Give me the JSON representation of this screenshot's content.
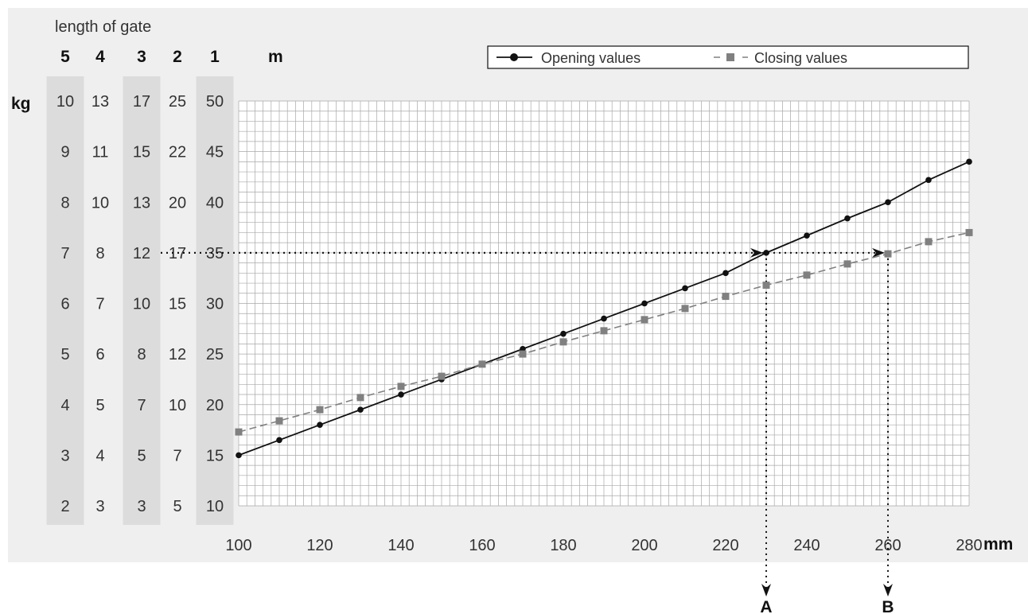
{
  "chart_data": {
    "type": "line",
    "title": "",
    "caption": "length of gate",
    "xlabel": "mm",
    "ylabel": "kg",
    "length_unit": "m",
    "x": [
      100,
      110,
      120,
      130,
      140,
      150,
      160,
      170,
      180,
      190,
      200,
      210,
      220,
      230,
      240,
      250,
      260,
      270,
      280
    ],
    "xlim": [
      100,
      280
    ],
    "x_ticks": [
      100,
      120,
      140,
      160,
      180,
      200,
      220,
      240,
      260,
      280
    ],
    "ylim": [
      10,
      50
    ],
    "series": [
      {
        "name": "Opening values",
        "color": "#111111",
        "marker": "circle",
        "dash": "solid",
        "values": [
          15,
          16.5,
          18,
          19.5,
          21,
          22.5,
          24,
          25.5,
          27,
          28.5,
          30,
          31.5,
          33,
          35,
          36.7,
          38.4,
          40,
          42.2,
          44
        ]
      },
      {
        "name": "Closing values",
        "color": "#808080",
        "marker": "square",
        "dash": "dashed",
        "values": [
          17.3,
          18.4,
          19.5,
          20.7,
          21.8,
          22.8,
          24,
          25,
          26.2,
          27.3,
          28.4,
          29.5,
          30.7,
          31.8,
          32.8,
          33.9,
          34.9,
          36.1,
          37
        ]
      }
    ],
    "length_columns": [
      {
        "header": "5",
        "shaded": true,
        "labels": [
          "10",
          "9",
          "8",
          "7",
          "6",
          "5",
          "4",
          "3",
          "2"
        ]
      },
      {
        "header": "4",
        "shaded": false,
        "labels": [
          "13",
          "11",
          "10",
          "8",
          "7",
          "6",
          "5",
          "4",
          "3"
        ]
      },
      {
        "header": "3",
        "shaded": true,
        "labels": [
          "17",
          "15",
          "13",
          "12",
          "10",
          "8",
          "7",
          "5",
          "3"
        ]
      },
      {
        "header": "2",
        "shaded": false,
        "labels": [
          "25",
          "22",
          "20",
          "17",
          "15",
          "12",
          "10",
          "7",
          "5"
        ]
      },
      {
        "header": "1",
        "shaded": true,
        "labels": [
          "50",
          "45",
          "40",
          "35",
          "30",
          "25",
          "20",
          "15",
          "10"
        ]
      }
    ],
    "annotations": [
      {
        "label": "A",
        "x": 230,
        "y": 35
      },
      {
        "label": "B",
        "x": 260,
        "y": 35
      }
    ],
    "grid": true,
    "legend_position": "top-right"
  }
}
